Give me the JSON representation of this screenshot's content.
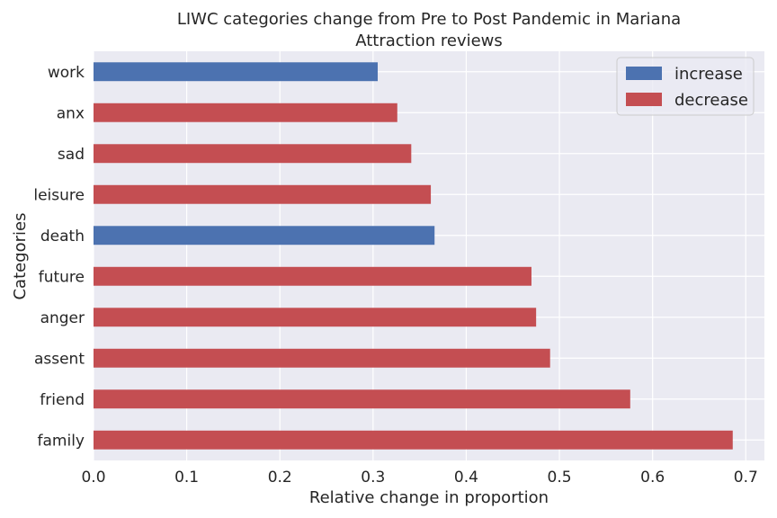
{
  "chart_data": {
    "type": "bar",
    "orientation": "horizontal",
    "title": "LIWC categories change from Pre to Post Pandemic in Mariana\nAttraction reviews",
    "title_lines": [
      "LIWC categories change from Pre to Post Pandemic in Mariana",
      "Attraction reviews"
    ],
    "xlabel": "Relative change in proportion",
    "ylabel": "Categories",
    "xlim": [
      0,
      0.72
    ],
    "x_ticks": [
      "0.0",
      "0.1",
      "0.2",
      "0.3",
      "0.4",
      "0.5",
      "0.6",
      "0.7"
    ],
    "categories": [
      "work",
      "anx",
      "sad",
      "leisure",
      "death",
      "future",
      "anger",
      "assent",
      "friend",
      "family"
    ],
    "values": [
      0.305,
      0.326,
      0.341,
      0.362,
      0.366,
      0.47,
      0.475,
      0.49,
      0.576,
      0.686
    ],
    "direction": [
      "increase",
      "decrease",
      "decrease",
      "decrease",
      "increase",
      "decrease",
      "decrease",
      "decrease",
      "decrease",
      "decrease"
    ],
    "legend": {
      "placement": "top-right",
      "entries": [
        {
          "name": "increase",
          "color": "#4c72b0"
        },
        {
          "name": "decrease",
          "color": "#c44e52"
        }
      ]
    },
    "grid": true,
    "style": {
      "background": "#eaeaf2",
      "grid_color": "#ffffff"
    }
  }
}
